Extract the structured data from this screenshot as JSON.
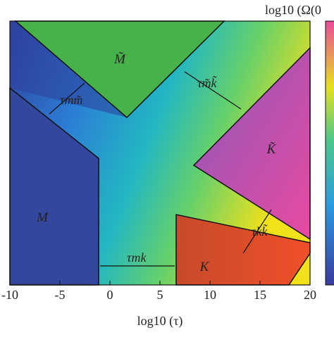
{
  "chart_data": {
    "type": "region-map",
    "xlabel": "log10 (τ)",
    "colorbar_label": "log10 (Ω(0",
    "xlim": [
      -10,
      20
    ],
    "xticks": [
      -10,
      -5,
      0,
      5,
      10,
      15,
      20
    ],
    "regions": [
      "M̃",
      "M",
      "K̃",
      "K"
    ],
    "annotations": [
      "τmm̃",
      "τm̃k̃",
      "τkk̃",
      "τmk"
    ]
  }
}
